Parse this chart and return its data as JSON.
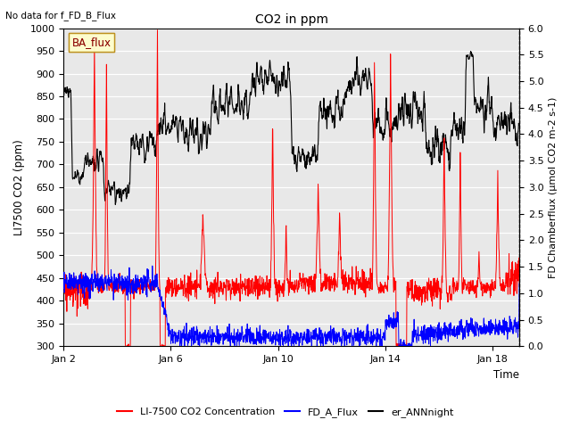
{
  "title": "CO2 in ppm",
  "no_data_text": "No data for f_FD_B_Flux",
  "xlabel": "Time",
  "ylabel_left": "LI7500 CO2 (ppm)",
  "ylabel_right": "FD Chamberflux (μmol CO2 m-2 s-1)",
  "ylim_left": [
    300,
    1000
  ],
  "ylim_right": [
    0.0,
    6.0
  ],
  "yticks_left": [
    300,
    350,
    400,
    450,
    500,
    550,
    600,
    650,
    700,
    750,
    800,
    850,
    900,
    950,
    1000
  ],
  "yticks_right": [
    0.0,
    0.5,
    1.0,
    1.5,
    2.0,
    2.5,
    3.0,
    3.5,
    4.0,
    4.5,
    5.0,
    5.5,
    6.0
  ],
  "xtick_labels": [
    "Jan 2",
    "Jan 6",
    "Jan 10",
    "Jan 14",
    "Jan 18"
  ],
  "legend_label": "BA_flux",
  "series_labels": [
    "LI-7500 CO2 Concentration",
    "FD_A_Flux",
    "er_ANNnight"
  ],
  "colors": [
    "red",
    "blue",
    "black"
  ],
  "bg_color": "#e8e8e8",
  "n_points": 1700
}
